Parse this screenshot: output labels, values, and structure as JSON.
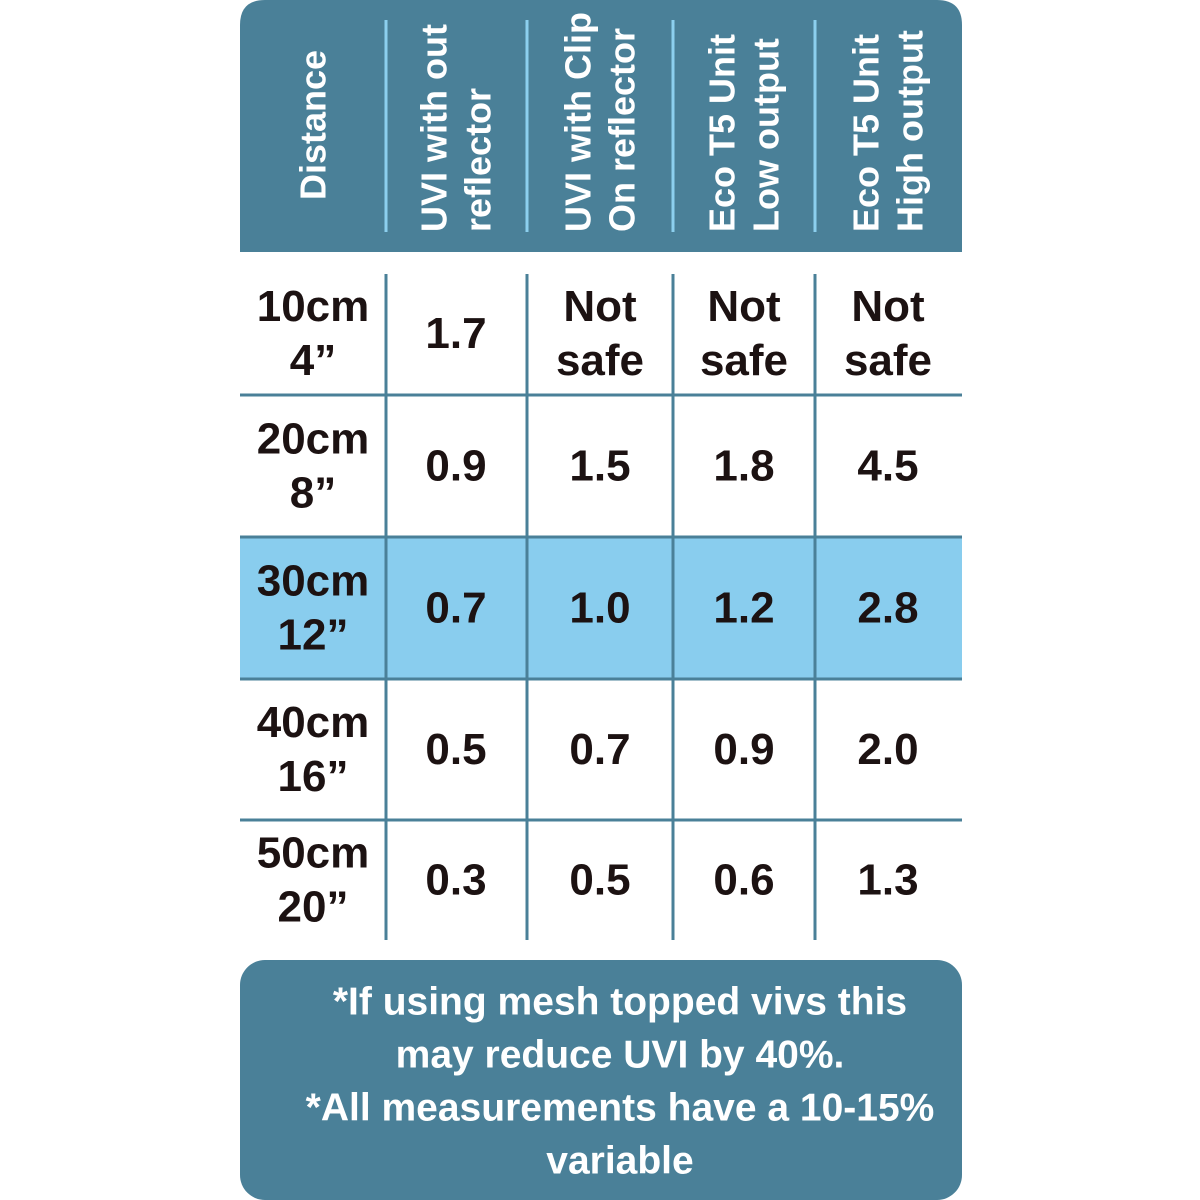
{
  "header": {
    "columns": [
      {
        "lines": [
          "Distance"
        ]
      },
      {
        "lines": [
          "UVI with out",
          "reflector"
        ]
      },
      {
        "lines": [
          "UVI with Clip",
          "On reflector"
        ]
      },
      {
        "lines": [
          "Eco T5 Unit",
          "Low output"
        ]
      },
      {
        "lines": [
          "Eco T5 Unit",
          "High output"
        ]
      }
    ]
  },
  "rows": [
    {
      "distance": [
        "10cm",
        "4”"
      ],
      "values": [
        [
          "1.7"
        ],
        [
          "Not",
          "safe"
        ],
        [
          "Not",
          "safe"
        ],
        [
          "Not",
          "safe"
        ]
      ]
    },
    {
      "distance": [
        "20cm",
        "8”"
      ],
      "values": [
        [
          "0.9"
        ],
        [
          "1.5"
        ],
        [
          "1.8"
        ],
        [
          "4.5"
        ]
      ]
    },
    {
      "distance": [
        "30cm",
        "12”"
      ],
      "values": [
        [
          "0.7"
        ],
        [
          "1.0"
        ],
        [
          "1.2"
        ],
        [
          "2.8"
        ]
      ]
    },
    {
      "distance": [
        "40cm",
        "16”"
      ],
      "values": [
        [
          "0.5"
        ],
        [
          "0.7"
        ],
        [
          "0.9"
        ],
        [
          "2.0"
        ]
      ]
    },
    {
      "distance": [
        "50cm",
        "20”"
      ],
      "values": [
        [
          "0.3"
        ],
        [
          "0.5"
        ],
        [
          "0.6"
        ],
        [
          "1.3"
        ]
      ]
    }
  ],
  "notes": {
    "lines": [
      "*If using mesh topped vivs this",
      "may reduce UVI by 40%.",
      "*All measurements have a 10-15%",
      "variable"
    ]
  }
}
